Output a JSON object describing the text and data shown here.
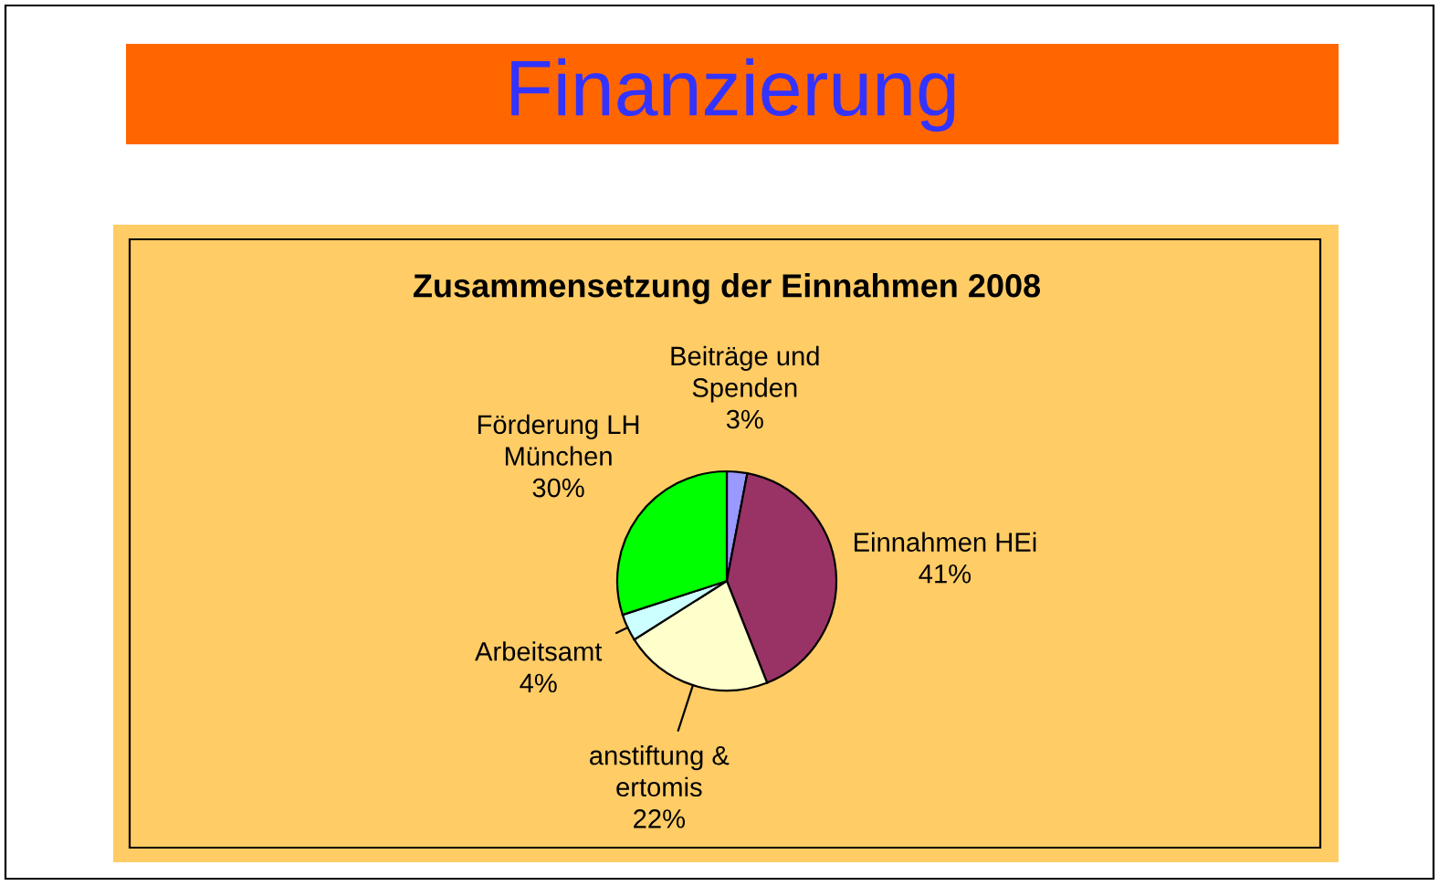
{
  "chart_data": {
    "type": "pie",
    "title": "Finanzierung",
    "subtitle": "Zusammensetzung der Einnahmen 2008",
    "categories": [
      "Beiträge und Spenden",
      "Einnahmen HEi",
      "anstiftung & ertomis",
      "Arbeitsamt",
      "Förderung LH München"
    ],
    "values": [
      3,
      41,
      22,
      4,
      30
    ],
    "colors": [
      "#9999ff",
      "#993366",
      "#ffffcc",
      "#ccffff",
      "#00ff00"
    ],
    "value_labels": [
      "3%",
      "41%",
      "22%",
      "4%",
      "30%"
    ]
  }
}
